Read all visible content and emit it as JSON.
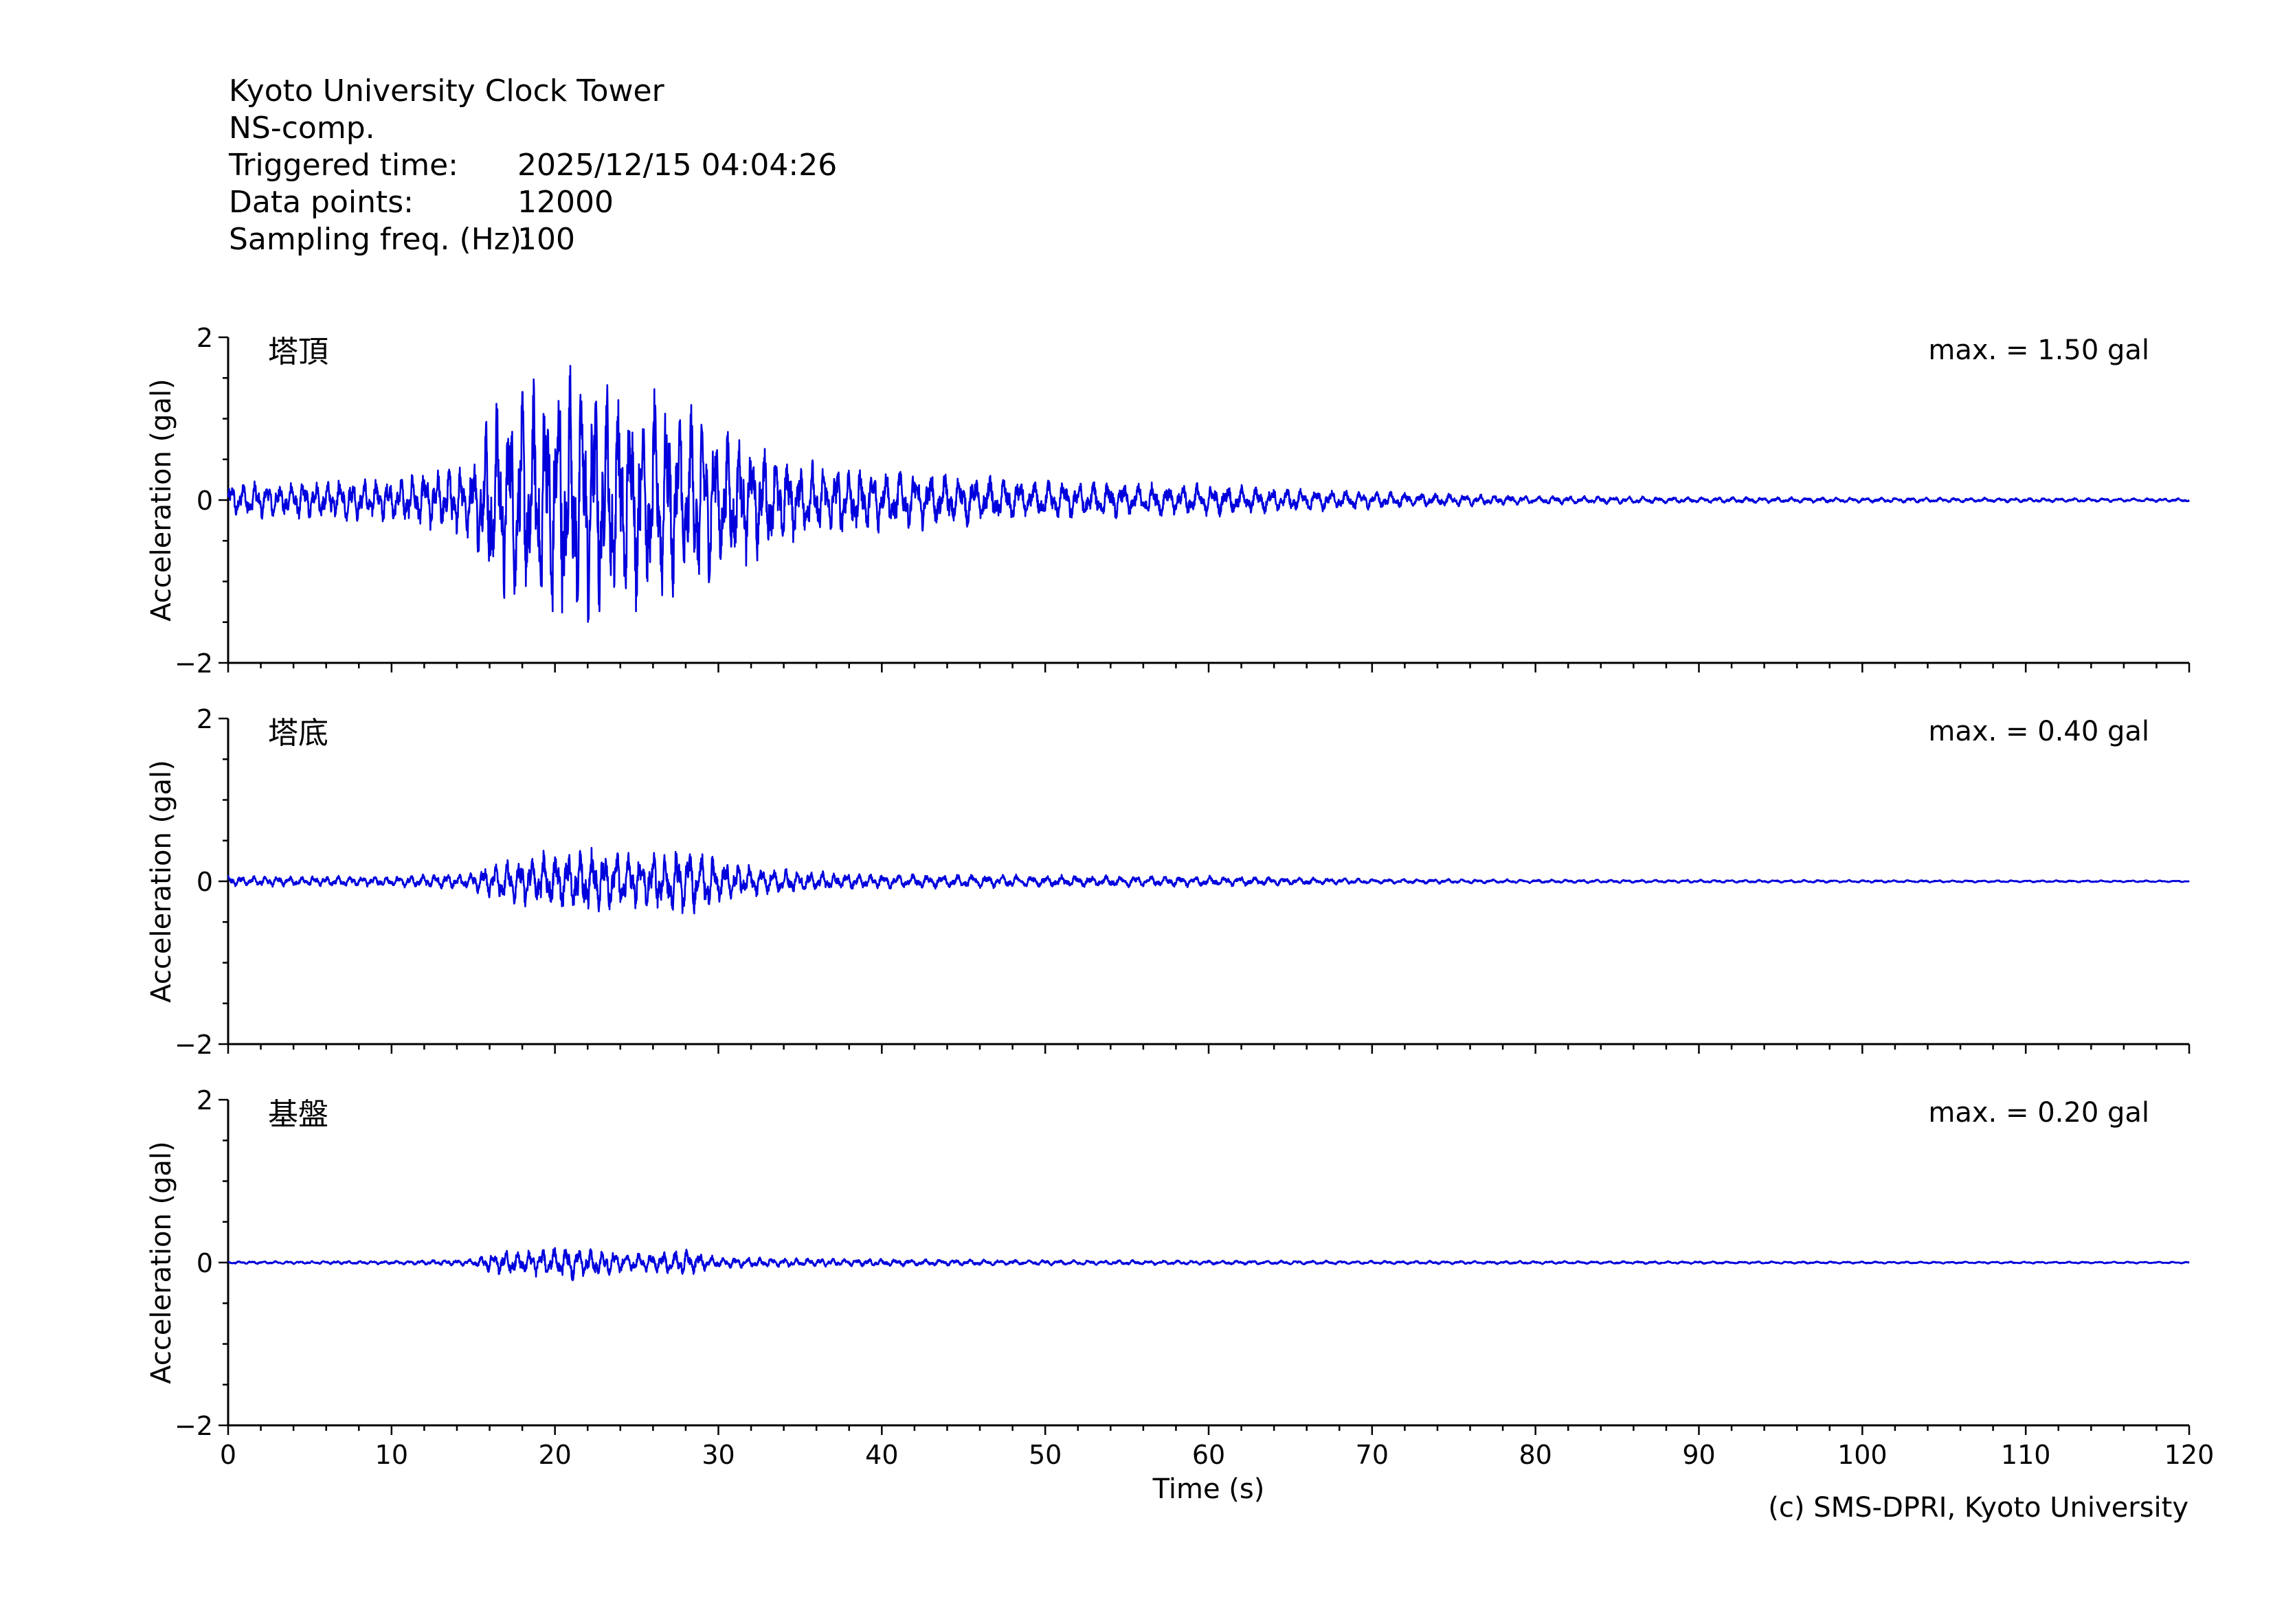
{
  "header": {
    "station": "Kyoto University Clock Tower",
    "component": "NS-comp.",
    "rows": [
      {
        "label": "Triggered time:",
        "value": "2025/12/15 04:04:26"
      },
      {
        "label": "Data points:",
        "value": "12000"
      },
      {
        "label": "Sampling freq. (Hz):",
        "value": "100"
      }
    ]
  },
  "copyright": "(c) SMS-DPRI, Kyoto University",
  "colors": {
    "trace": "#0000dd",
    "axis": "#000000"
  },
  "chart_data": [
    {
      "type": "line",
      "panel_label": "塔頂",
      "max_label": "max. = 1.50 gal",
      "ylabel": "Acceleration (gal)",
      "xlabel": "",
      "xlim": [
        0,
        120
      ],
      "ylim": [
        -2,
        2
      ],
      "yticks": [
        -2,
        0,
        2
      ],
      "grid": false,
      "series": [
        {
          "peak_abs": 1.5,
          "envelope": [
            [
              0,
              0.2
            ],
            [
              5,
              0.22
            ],
            [
              10,
              0.25
            ],
            [
              15,
              0.45
            ],
            [
              16,
              1.1
            ],
            [
              18,
              1.2
            ],
            [
              20,
              1.5
            ],
            [
              22,
              1.4
            ],
            [
              25,
              1.2
            ],
            [
              28,
              1.1
            ],
            [
              31,
              0.75
            ],
            [
              35,
              0.45
            ],
            [
              40,
              0.35
            ],
            [
              50,
              0.22
            ],
            [
              60,
              0.18
            ],
            [
              70,
              0.1
            ],
            [
              80,
              0.05
            ],
            [
              90,
              0.035
            ],
            [
              100,
              0.03
            ],
            [
              120,
              0.02
            ]
          ]
        }
      ]
    },
    {
      "type": "line",
      "panel_label": "塔底",
      "max_label": "max. = 0.40 gal",
      "ylabel": "Acceleration (gal)",
      "xlabel": "",
      "xlim": [
        0,
        120
      ],
      "ylim": [
        -2,
        2
      ],
      "yticks": [
        -2,
        0,
        2
      ],
      "grid": false,
      "series": [
        {
          "peak_abs": 0.4,
          "envelope": [
            [
              0,
              0.06
            ],
            [
              10,
              0.06
            ],
            [
              15,
              0.1
            ],
            [
              16,
              0.2
            ],
            [
              20,
              0.35
            ],
            [
              22,
              0.38
            ],
            [
              25,
              0.3
            ],
            [
              28,
              0.4
            ],
            [
              31,
              0.2
            ],
            [
              35,
              0.12
            ],
            [
              40,
              0.08
            ],
            [
              50,
              0.07
            ],
            [
              60,
              0.06
            ],
            [
              70,
              0.03
            ],
            [
              80,
              0.02
            ],
            [
              100,
              0.015
            ],
            [
              120,
              0.01
            ]
          ]
        }
      ]
    },
    {
      "type": "line",
      "panel_label": "基盤",
      "max_label": "max. = 0.20 gal",
      "ylabel": "Acceleration (gal)",
      "xlabel": "Time (s)",
      "xlim": [
        0,
        120
      ],
      "ylim": [
        -2,
        2
      ],
      "yticks": [
        -2,
        0,
        2
      ],
      "xticks": [
        0,
        10,
        20,
        30,
        40,
        50,
        60,
        70,
        80,
        90,
        100,
        110,
        120
      ],
      "grid": false,
      "series": [
        {
          "peak_abs": 0.2,
          "envelope": [
            [
              0,
              0.015
            ],
            [
              10,
              0.02
            ],
            [
              15,
              0.04
            ],
            [
              16,
              0.12
            ],
            [
              20,
              0.18
            ],
            [
              21,
              0.2
            ],
            [
              25,
              0.1
            ],
            [
              28,
              0.15
            ],
            [
              30,
              0.06
            ],
            [
              40,
              0.04
            ],
            [
              50,
              0.03
            ],
            [
              70,
              0.02
            ],
            [
              100,
              0.012
            ],
            [
              120,
              0.01
            ]
          ]
        }
      ]
    }
  ]
}
